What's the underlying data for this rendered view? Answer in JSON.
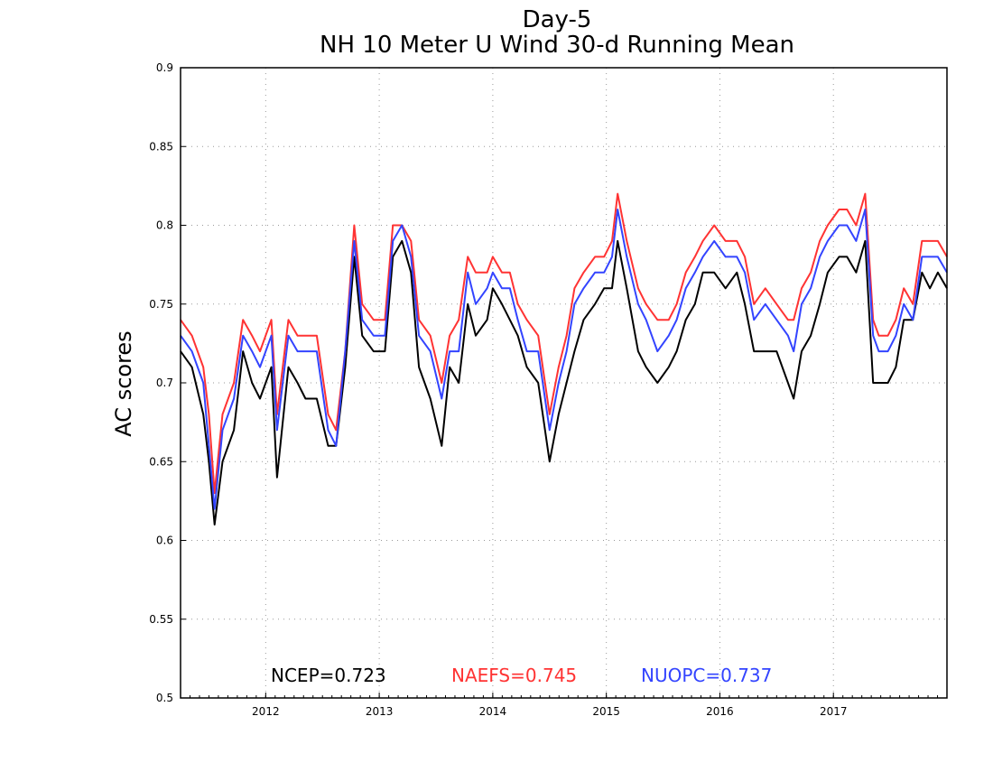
{
  "chart_data": {
    "type": "line",
    "title_lines": [
      "Day-5",
      "NH 10 Meter U Wind 30-d Running Mean"
    ],
    "xlabel": "",
    "ylabel": "AC scores",
    "xlim": [
      2011.25,
      2018.0
    ],
    "ylim": [
      0.5,
      0.9
    ],
    "yticks": [
      "0.5",
      "0.55",
      "0.6",
      "0.65",
      "0.7",
      "0.75",
      "0.8",
      "0.85",
      "0.9"
    ],
    "xticks": [
      "2012",
      "2013",
      "2014",
      "2015",
      "2016",
      "2017"
    ],
    "grid": true,
    "legend_placement": "bottom-center",
    "series": [
      {
        "name": "NCEP",
        "legend_label": "NCEP=0.723",
        "color": "#000000",
        "x": [
          2011.25,
          2011.35,
          2011.45,
          2011.5,
          2011.55,
          2011.62,
          2011.72,
          2011.8,
          2011.88,
          2011.95,
          2012.05,
          2012.1,
          2012.2,
          2012.28,
          2012.35,
          2012.45,
          2012.55,
          2012.62,
          2012.7,
          2012.78,
          2012.85,
          2012.95,
          2013.05,
          2013.12,
          2013.2,
          2013.28,
          2013.35,
          2013.45,
          2013.55,
          2013.62,
          2013.7,
          2013.78,
          2013.85,
          2013.95,
          2014.0,
          2014.08,
          2014.15,
          2014.22,
          2014.3,
          2014.4,
          2014.5,
          2014.58,
          2014.65,
          2014.72,
          2014.8,
          2014.9,
          2014.98,
          2015.05,
          2015.1,
          2015.18,
          2015.28,
          2015.35,
          2015.45,
          2015.55,
          2015.62,
          2015.7,
          2015.78,
          2015.85,
          2015.95,
          2016.05,
          2016.15,
          2016.22,
          2016.3,
          2016.4,
          2016.5,
          2016.6,
          2016.65,
          2016.72,
          2016.8,
          2016.88,
          2016.95,
          2017.05,
          2017.12,
          2017.2,
          2017.28,
          2017.35,
          2017.4,
          2017.48,
          2017.55,
          2017.62,
          2017.7,
          2017.78,
          2017.85,
          2017.92,
          2018.0
        ],
        "values": [
          0.72,
          0.71,
          0.68,
          0.65,
          0.61,
          0.65,
          0.67,
          0.72,
          0.7,
          0.69,
          0.71,
          0.64,
          0.71,
          0.7,
          0.69,
          0.69,
          0.66,
          0.66,
          0.71,
          0.78,
          0.73,
          0.72,
          0.72,
          0.78,
          0.79,
          0.77,
          0.71,
          0.69,
          0.66,
          0.71,
          0.7,
          0.75,
          0.73,
          0.74,
          0.76,
          0.75,
          0.74,
          0.73,
          0.71,
          0.7,
          0.65,
          0.68,
          0.7,
          0.72,
          0.74,
          0.75,
          0.76,
          0.76,
          0.79,
          0.76,
          0.72,
          0.71,
          0.7,
          0.71,
          0.72,
          0.74,
          0.75,
          0.77,
          0.77,
          0.76,
          0.77,
          0.75,
          0.72,
          0.72,
          0.72,
          0.7,
          0.69,
          0.72,
          0.73,
          0.75,
          0.77,
          0.78,
          0.78,
          0.77,
          0.79,
          0.7,
          0.7,
          0.7,
          0.71,
          0.74,
          0.74,
          0.77,
          0.76,
          0.77,
          0.76
        ]
      },
      {
        "name": "NAEFS",
        "legend_label": "NAEFS=0.745",
        "color": "#ff3333",
        "x": [
          2011.25,
          2011.35,
          2011.45,
          2011.5,
          2011.55,
          2011.62,
          2011.72,
          2011.8,
          2011.88,
          2011.95,
          2012.05,
          2012.1,
          2012.2,
          2012.28,
          2012.35,
          2012.45,
          2012.55,
          2012.62,
          2012.7,
          2012.78,
          2012.85,
          2012.95,
          2013.05,
          2013.12,
          2013.2,
          2013.28,
          2013.35,
          2013.45,
          2013.55,
          2013.62,
          2013.7,
          2013.78,
          2013.85,
          2013.95,
          2014.0,
          2014.08,
          2014.15,
          2014.22,
          2014.3,
          2014.4,
          2014.5,
          2014.58,
          2014.65,
          2014.72,
          2014.8,
          2014.9,
          2014.98,
          2015.05,
          2015.1,
          2015.18,
          2015.28,
          2015.35,
          2015.45,
          2015.55,
          2015.62,
          2015.7,
          2015.78,
          2015.85,
          2015.95,
          2016.05,
          2016.15,
          2016.22,
          2016.3,
          2016.4,
          2016.5,
          2016.6,
          2016.65,
          2016.72,
          2016.8,
          2016.88,
          2016.95,
          2017.05,
          2017.12,
          2017.2,
          2017.28,
          2017.35,
          2017.4,
          2017.48,
          2017.55,
          2017.62,
          2017.7,
          2017.78,
          2017.85,
          2017.92,
          2018.0
        ],
        "values": [
          0.74,
          0.73,
          0.71,
          0.68,
          0.63,
          0.68,
          0.7,
          0.74,
          0.73,
          0.72,
          0.74,
          0.68,
          0.74,
          0.73,
          0.73,
          0.73,
          0.68,
          0.67,
          0.72,
          0.8,
          0.75,
          0.74,
          0.74,
          0.8,
          0.8,
          0.79,
          0.74,
          0.73,
          0.7,
          0.73,
          0.74,
          0.78,
          0.77,
          0.77,
          0.78,
          0.77,
          0.77,
          0.75,
          0.74,
          0.73,
          0.68,
          0.71,
          0.73,
          0.76,
          0.77,
          0.78,
          0.78,
          0.79,
          0.82,
          0.79,
          0.76,
          0.75,
          0.74,
          0.74,
          0.75,
          0.77,
          0.78,
          0.79,
          0.8,
          0.79,
          0.79,
          0.78,
          0.75,
          0.76,
          0.75,
          0.74,
          0.74,
          0.76,
          0.77,
          0.79,
          0.8,
          0.81,
          0.81,
          0.8,
          0.82,
          0.74,
          0.73,
          0.73,
          0.74,
          0.76,
          0.75,
          0.79,
          0.79,
          0.79,
          0.78
        ]
      },
      {
        "name": "NUOPC",
        "legend_label": "NUOPC=0.737",
        "color": "#3344ff",
        "x": [
          2011.25,
          2011.35,
          2011.45,
          2011.5,
          2011.55,
          2011.62,
          2011.72,
          2011.8,
          2011.88,
          2011.95,
          2012.05,
          2012.1,
          2012.2,
          2012.28,
          2012.35,
          2012.45,
          2012.55,
          2012.62,
          2012.7,
          2012.78,
          2012.85,
          2012.95,
          2013.05,
          2013.12,
          2013.2,
          2013.28,
          2013.35,
          2013.45,
          2013.55,
          2013.62,
          2013.7,
          2013.78,
          2013.85,
          2013.95,
          2014.0,
          2014.08,
          2014.15,
          2014.22,
          2014.3,
          2014.4,
          2014.5,
          2014.58,
          2014.65,
          2014.72,
          2014.8,
          2014.9,
          2014.98,
          2015.05,
          2015.1,
          2015.18,
          2015.28,
          2015.35,
          2015.45,
          2015.55,
          2015.62,
          2015.7,
          2015.78,
          2015.85,
          2015.95,
          2016.05,
          2016.15,
          2016.22,
          2016.3,
          2016.4,
          2016.5,
          2016.6,
          2016.65,
          2016.72,
          2016.8,
          2016.88,
          2016.95,
          2017.05,
          2017.12,
          2017.2,
          2017.28,
          2017.35,
          2017.4,
          2017.48,
          2017.55,
          2017.62,
          2017.7,
          2017.78,
          2017.85,
          2017.92,
          2018.0
        ],
        "values": [
          0.73,
          0.72,
          0.7,
          0.66,
          0.62,
          0.67,
          0.69,
          0.73,
          0.72,
          0.71,
          0.73,
          0.67,
          0.73,
          0.72,
          0.72,
          0.72,
          0.67,
          0.66,
          0.72,
          0.79,
          0.74,
          0.73,
          0.73,
          0.79,
          0.8,
          0.78,
          0.73,
          0.72,
          0.69,
          0.72,
          0.72,
          0.77,
          0.75,
          0.76,
          0.77,
          0.76,
          0.76,
          0.74,
          0.72,
          0.72,
          0.67,
          0.7,
          0.72,
          0.75,
          0.76,
          0.77,
          0.77,
          0.78,
          0.81,
          0.78,
          0.75,
          0.74,
          0.72,
          0.73,
          0.74,
          0.76,
          0.77,
          0.78,
          0.79,
          0.78,
          0.78,
          0.77,
          0.74,
          0.75,
          0.74,
          0.73,
          0.72,
          0.75,
          0.76,
          0.78,
          0.79,
          0.8,
          0.8,
          0.79,
          0.81,
          0.73,
          0.72,
          0.72,
          0.73,
          0.75,
          0.74,
          0.78,
          0.78,
          0.78,
          0.77
        ]
      }
    ]
  }
}
